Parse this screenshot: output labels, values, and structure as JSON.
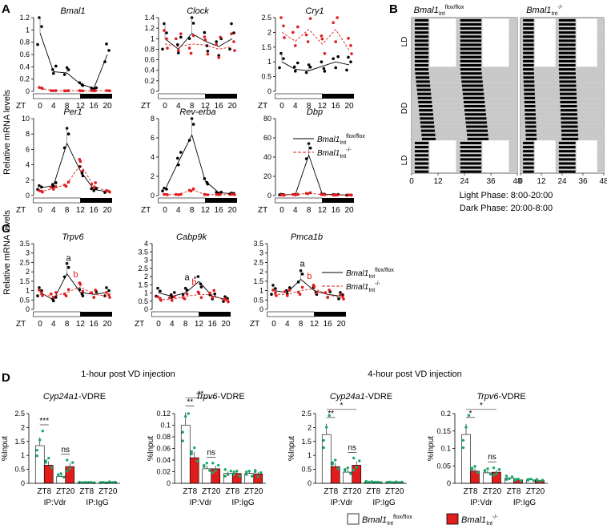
{
  "panels": {
    "A": "A",
    "B": "B",
    "C": "C",
    "D": "D"
  },
  "common": {
    "zt_label": "ZT",
    "zt_ticks": [
      "0",
      "4",
      "8",
      "12",
      "16",
      "20"
    ],
    "ylabel_mrna": "Relative mRNA levels",
    "legend_ctrl": "Bmal1",
    "legend_ctrl_sub": "Int",
    "legend_ctrl_sup": "flox/flox",
    "legend_ko": "Bmal1",
    "legend_ko_sub": "Int",
    "legend_ko_sup": "-/-",
    "colors": {
      "ctrl": "#000000",
      "ko": "#e01c1c",
      "green": "#1aa86a",
      "gray": "#c8c8c8"
    }
  },
  "actogram": {
    "title_left": "Bmal1",
    "title_left_sub": "Int",
    "title_left_sup": "flox/flox",
    "title_right": "Bmal1",
    "title_right_sub": "Int",
    "title_right_sup": "-/-",
    "row_labels": [
      "LD",
      "DD",
      "LD"
    ],
    "x_ticks": [
      "0",
      "12",
      "24",
      "36",
      "48"
    ],
    "light_phase": "Light Phase: 8:00-20:00",
    "dark_phase": "Dark Phase: 20:00-8:00"
  },
  "D_headers": {
    "left": "1-hour post VD injection",
    "right": "4-hour post VD injection"
  },
  "chart_data": [
    {
      "type": "line",
      "panel": "A",
      "title": "Bmal1",
      "x": [
        0,
        4,
        8,
        12,
        16,
        20
      ],
      "ylim": [
        0,
        1.2
      ],
      "yticks": [
        "0",
        "0.2",
        "0.4",
        "0.6",
        "0.8",
        "1",
        "1.2"
      ],
      "series": [
        {
          "name": "Bmal1 Int flox/flox",
          "values": [
            0.95,
            0.32,
            0.3,
            0.12,
            0.05,
            0.6
          ]
        },
        {
          "name": "Bmal1 Int -/-",
          "values": [
            0.05,
            0.01,
            0.01,
            0.01,
            0.01,
            0.01
          ]
        }
      ]
    },
    {
      "type": "line",
      "panel": "A",
      "title": "Clock",
      "x": [
        0,
        4,
        8,
        12,
        16,
        20
      ],
      "ylim": [
        0,
        1.4
      ],
      "yticks": [
        "0",
        "0.2",
        "0.4",
        "0.6",
        "0.8",
        "1",
        "1.2",
        "1.4"
      ],
      "series": [
        {
          "name": "Bmal1 Int flox/flox",
          "values": [
            1.0,
            0.8,
            1.1,
            0.95,
            0.85,
            1.0
          ]
        },
        {
          "name": "Bmal1 Int -/-",
          "values": [
            0.9,
            0.85,
            0.9,
            0.88,
            0.8,
            0.85
          ]
        }
      ]
    },
    {
      "type": "line",
      "panel": "A",
      "title": "Cry1",
      "x": [
        0,
        4,
        8,
        12,
        16,
        20
      ],
      "ylim": [
        0,
        2.5
      ],
      "yticks": [
        "0",
        "0.5",
        "1",
        "1.5",
        "2",
        "2.5"
      ],
      "series": [
        {
          "name": "Bmal1 Int flox/flox",
          "values": [
            1.0,
            0.75,
            0.7,
            0.85,
            1.0,
            0.9
          ]
        },
        {
          "name": "Bmal1 Int -/-",
          "values": [
            2.0,
            1.7,
            2.1,
            1.6,
            2.1,
            1.4
          ]
        }
      ]
    },
    {
      "type": "line",
      "panel": "A",
      "title": "Per1",
      "x": [
        0,
        4,
        8,
        12,
        16,
        20
      ],
      "ylim": [
        0,
        10
      ],
      "yticks": [
        "0",
        "2",
        "4",
        "6",
        "8",
        "10"
      ],
      "series": [
        {
          "name": "Bmal1 Int flox/flox",
          "values": [
            1.0,
            1.3,
            6.8,
            3.2,
            0.8,
            0.5
          ]
        },
        {
          "name": "Bmal1 Int -/-",
          "values": [
            0.5,
            0.9,
            1.5,
            4.0,
            1.3,
            0.5
          ]
        }
      ]
    },
    {
      "type": "line",
      "panel": "A",
      "title": "Rev-erba",
      "x": [
        0,
        4,
        8,
        12,
        16,
        20
      ],
      "ylim": [
        0,
        8
      ],
      "yticks": [
        "0",
        "2",
        "4",
        "6",
        "8"
      ],
      "series": [
        {
          "name": "Bmal1 Int flox/flox",
          "values": [
            0.6,
            3.5,
            6.3,
            1.5,
            0.3,
            0.2
          ]
        },
        {
          "name": "Bmal1 Int -/-",
          "values": [
            0.1,
            0.1,
            0.6,
            0.1,
            0.1,
            0.1
          ]
        }
      ]
    },
    {
      "type": "line",
      "panel": "A",
      "title": "Dbp",
      "x": [
        0,
        4,
        8,
        12,
        16,
        20
      ],
      "ylim": [
        0,
        80
      ],
      "yticks": [
        "0",
        "20",
        "40",
        "60",
        "80"
      ],
      "series": [
        {
          "name": "Bmal1 Int flox/flox",
          "values": [
            1.0,
            1.0,
            42.0,
            1.5,
            1.0,
            0.5
          ]
        },
        {
          "name": "Bmal1 Int -/-",
          "values": [
            0.5,
            1.0,
            2.5,
            1.0,
            0.5,
            0.5
          ]
        }
      ]
    },
    {
      "type": "line",
      "panel": "C",
      "title": "Trpv6",
      "x": [
        0,
        4,
        8,
        12,
        16,
        20
      ],
      "ylim": [
        0,
        3.5
      ],
      "yticks": [
        "0",
        "0.5",
        "1",
        "1.5",
        "2",
        "2.5",
        "3",
        "3.5"
      ],
      "letters": [
        "a",
        "b"
      ],
      "series": [
        {
          "name": "Bmal1 Int flox/flox",
          "values": [
            0.9,
            0.5,
            1.9,
            0.9,
            0.8,
            0.9
          ]
        },
        {
          "name": "Bmal1 Int -/-",
          "values": [
            0.8,
            0.7,
            0.9,
            1.2,
            0.8,
            0.7
          ]
        }
      ]
    },
    {
      "type": "line",
      "panel": "C",
      "title": "Cabp9k",
      "x": [
        0,
        4,
        8,
        12,
        16,
        20
      ],
      "ylim": [
        0,
        4
      ],
      "yticks": [
        "0",
        "0.5",
        "1",
        "1.5",
        "2",
        "2.5",
        "3",
        "3.5",
        "4"
      ],
      "letters": [
        "a",
        "b"
      ],
      "asterisk": "*",
      "series": [
        {
          "name": "Bmal1 Int flox/flox",
          "values": [
            1.0,
            0.8,
            1.0,
            1.7,
            0.8,
            0.6
          ]
        },
        {
          "name": "Bmal1 Int -/-",
          "values": [
            0.6,
            0.6,
            0.8,
            0.9,
            0.9,
            0.5
          ]
        }
      ]
    },
    {
      "type": "line",
      "panel": "C",
      "title": "Pmca1b",
      "x": [
        0,
        4,
        8,
        12,
        16,
        20
      ],
      "ylim": [
        0,
        3.5
      ],
      "yticks": [
        "0",
        "0.5",
        "1",
        "1.5",
        "2",
        "2.5",
        "3",
        "3.5"
      ],
      "letters": [
        "a",
        "b"
      ],
      "series": [
        {
          "name": "Bmal1 Int flox/flox",
          "values": [
            1.0,
            0.9,
            1.6,
            1.0,
            0.8,
            0.7
          ]
        },
        {
          "name": "Bmal1 Int -/-",
          "values": [
            0.8,
            0.8,
            1.0,
            1.1,
            0.8,
            0.6
          ]
        }
      ]
    },
    {
      "type": "bar",
      "panel": "D",
      "title": "Cyp24a1-VDRE",
      "ylabel": "%Input",
      "ylim": [
        0,
        2.5
      ],
      "yticks": [
        "0",
        "0.5",
        "1",
        "1.5",
        "2",
        "2.5"
      ],
      "categories": [
        "ZT8",
        "ZT20",
        "ZT8",
        "ZT20"
      ],
      "groups": [
        "IP:Vdr",
        "IP:IgG"
      ],
      "sig": [
        "***",
        "ns"
      ],
      "series": [
        {
          "name": "Bmal1 Int flox/flox",
          "values": [
            1.35,
            0.25,
            0.03,
            0.03
          ]
        },
        {
          "name": "Bmal1 Int -/-",
          "values": [
            0.65,
            0.6,
            0.03,
            0.04
          ]
        }
      ]
    },
    {
      "type": "bar",
      "panel": "D",
      "title": "Trpv6-VDRE",
      "ylabel": "%Input",
      "ylim": [
        0,
        0.12
      ],
      "yticks": [
        "0",
        "0.02",
        "0.04",
        "0.06",
        "0.08",
        "0.1",
        "0.12"
      ],
      "categories": [
        "ZT8",
        "ZT20",
        "ZT8",
        "ZT20"
      ],
      "groups": [
        "IP:Vdr",
        "IP:IgG"
      ],
      "sig": [
        "**",
        "**",
        "ns"
      ],
      "series": [
        {
          "name": "Bmal1 Int flox/flox",
          "values": [
            0.1,
            0.025,
            0.017,
            0.017
          ]
        },
        {
          "name": "Bmal1 Int -/-",
          "values": [
            0.044,
            0.025,
            0.017,
            0.016
          ]
        }
      ]
    },
    {
      "type": "bar",
      "panel": "D",
      "title": "Cyp24a1-VDRE",
      "ylabel": "%Input",
      "ylim": [
        0,
        2.5
      ],
      "yticks": [
        "0",
        "0.5",
        "1",
        "1.5",
        "2",
        "2.5"
      ],
      "categories": [
        "ZT8",
        "ZT20",
        "ZT8",
        "ZT20"
      ],
      "groups": [
        "IP:Vdr",
        "IP:IgG"
      ],
      "sig": [
        "**",
        "*",
        "ns"
      ],
      "series": [
        {
          "name": "Bmal1 Int flox/flox",
          "values": [
            1.75,
            0.4,
            0.05,
            0.04
          ]
        },
        {
          "name": "Bmal1 Int -/-",
          "values": [
            0.6,
            0.65,
            0.04,
            0.04
          ]
        }
      ]
    },
    {
      "type": "bar",
      "panel": "D",
      "title": "Trpv6-VDRE",
      "ylabel": "%Input",
      "ylim": [
        0,
        0.2
      ],
      "yticks": [
        "0",
        "0.05",
        "0.1",
        "0.15",
        "0.2"
      ],
      "categories": [
        "ZT8",
        "ZT20",
        "ZT8",
        "ZT20"
      ],
      "groups": [
        "IP:Vdr",
        "IP:IgG"
      ],
      "sig": [
        "*",
        "*",
        "ns"
      ],
      "series": [
        {
          "name": "Bmal1 Int flox/flox",
          "values": [
            0.14,
            0.03,
            0.015,
            0.01
          ]
        },
        {
          "name": "Bmal1 Int -/-",
          "values": [
            0.035,
            0.032,
            0.01,
            0.008
          ]
        }
      ]
    }
  ]
}
